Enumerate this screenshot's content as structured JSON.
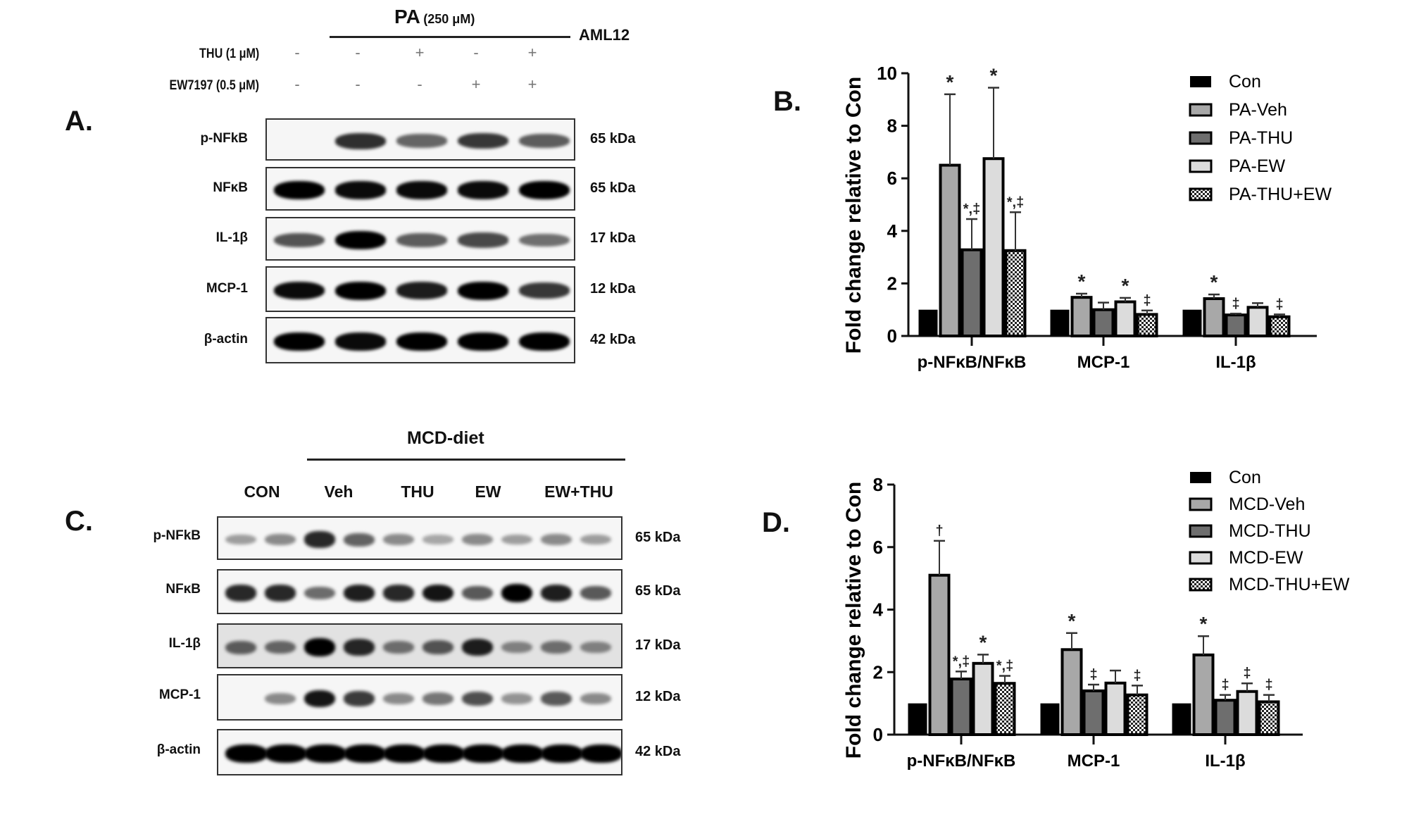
{
  "panel_a": {
    "letter": "A.",
    "header": {
      "treatment": "PA",
      "treatment_conc": "(250 μM)",
      "cell_line": "AML12"
    },
    "conditions": [
      {
        "label": "THU (1 μM)",
        "signs": [
          "-",
          "-",
          "+",
          "-",
          "+"
        ]
      },
      {
        "label": "EW7197 (0.5 μM)",
        "signs": [
          "-",
          "-",
          "-",
          "+",
          "+"
        ]
      }
    ],
    "blots": [
      {
        "protein": "p-NFkB",
        "kda": "65 kDa"
      },
      {
        "protein": "NFκB",
        "kda": "65 kDa"
      },
      {
        "protein": "IL-1β",
        "kda": "17 kDa"
      },
      {
        "protein": "MCP-1",
        "kda": "12 kDa"
      },
      {
        "protein": "β-actin",
        "kda": "42 kDa"
      }
    ]
  },
  "panel_c": {
    "letter": "C.",
    "header": "MCD-diet",
    "lanes": [
      "CON",
      "Veh",
      "THU",
      "EW",
      "EW+THU"
    ],
    "blots": [
      {
        "protein": "p-NFkB",
        "kda": "65 kDa"
      },
      {
        "protein": "NFκB",
        "kda": "65 kDa"
      },
      {
        "protein": "IL-1β",
        "kda": "17 kDa"
      },
      {
        "protein": "MCP-1",
        "kda": "12 kDa"
      },
      {
        "protein": "β-actin",
        "kda": "42 kDa"
      }
    ]
  },
  "panel_b_letter": "B.",
  "panel_d_letter": "D.",
  "colors": {
    "con": "#000000",
    "veh": "#a8a8a8",
    "thu": "#6e6e6e",
    "ew": "#dcdcdc",
    "combo": "#ffffff",
    "axis": "#111111"
  },
  "chart_data": [
    {
      "id": "B",
      "type": "bar",
      "title": "",
      "xlabel": "",
      "ylabel": "Fold change relative to Con",
      "categories": [
        "p-NFκB/NFκB",
        "MCP-1",
        "IL-1β"
      ],
      "ylim": [
        0,
        10
      ],
      "yticks": [
        0,
        2,
        4,
        6,
        8,
        10
      ],
      "grid": false,
      "legend_position": "top-right",
      "series": [
        {
          "name": "Con",
          "values": [
            1.0,
            1.0,
            1.0
          ],
          "errors": [
            0,
            0,
            0
          ],
          "annotations": [
            "",
            "",
            ""
          ]
        },
        {
          "name": "PA-Veh",
          "values": [
            6.5,
            1.47,
            1.42
          ],
          "errors": [
            2.7,
            0.14,
            0.16
          ],
          "annotations": [
            "*",
            "*",
            "*"
          ]
        },
        {
          "name": "PA-THU",
          "values": [
            3.28,
            1.0,
            0.8
          ],
          "errors": [
            1.17,
            0.27,
            0.05
          ],
          "annotations": [
            "*,‡",
            "",
            "‡"
          ]
        },
        {
          "name": "PA-EW",
          "values": [
            6.75,
            1.3,
            1.09
          ],
          "errors": [
            2.7,
            0.15,
            0.16
          ],
          "annotations": [
            "*",
            "*",
            ""
          ]
        },
        {
          "name": "PA-THU+EW",
          "values": [
            3.25,
            0.82,
            0.73
          ],
          "errors": [
            1.46,
            0.15,
            0.09
          ],
          "annotations": [
            "*,‡",
            "‡",
            "‡"
          ]
        }
      ]
    },
    {
      "id": "D",
      "type": "bar",
      "title": "",
      "xlabel": "",
      "ylabel": "Fold change relative to Con",
      "categories": [
        "p-NFκB/NFκB",
        "MCP-1",
        "IL-1β"
      ],
      "ylim": [
        0,
        8
      ],
      "yticks": [
        0,
        2,
        4,
        6,
        8
      ],
      "grid": false,
      "legend_position": "top-right",
      "series": [
        {
          "name": "Con",
          "values": [
            1.0,
            1.0,
            1.0
          ],
          "errors": [
            0,
            0,
            0
          ],
          "annotations": [
            "",
            "",
            ""
          ]
        },
        {
          "name": "MCD-Veh",
          "values": [
            5.1,
            2.72,
            2.55
          ],
          "errors": [
            1.1,
            0.53,
            0.6
          ],
          "annotations": [
            "†",
            "*",
            "*"
          ]
        },
        {
          "name": "MCD-THU",
          "values": [
            1.78,
            1.4,
            1.1
          ],
          "errors": [
            0.24,
            0.2,
            0.17
          ],
          "annotations": [
            "*,‡",
            "‡",
            "‡"
          ]
        },
        {
          "name": "MCD-EW",
          "values": [
            2.28,
            1.65,
            1.38
          ],
          "errors": [
            0.28,
            0.4,
            0.26
          ],
          "annotations": [
            "*",
            "",
            "‡"
          ]
        },
        {
          "name": "MCD-THU+EW",
          "values": [
            1.64,
            1.27,
            1.05
          ],
          "errors": [
            0.24,
            0.3,
            0.22
          ],
          "annotations": [
            "*,‡",
            "‡",
            "‡"
          ]
        }
      ]
    }
  ]
}
